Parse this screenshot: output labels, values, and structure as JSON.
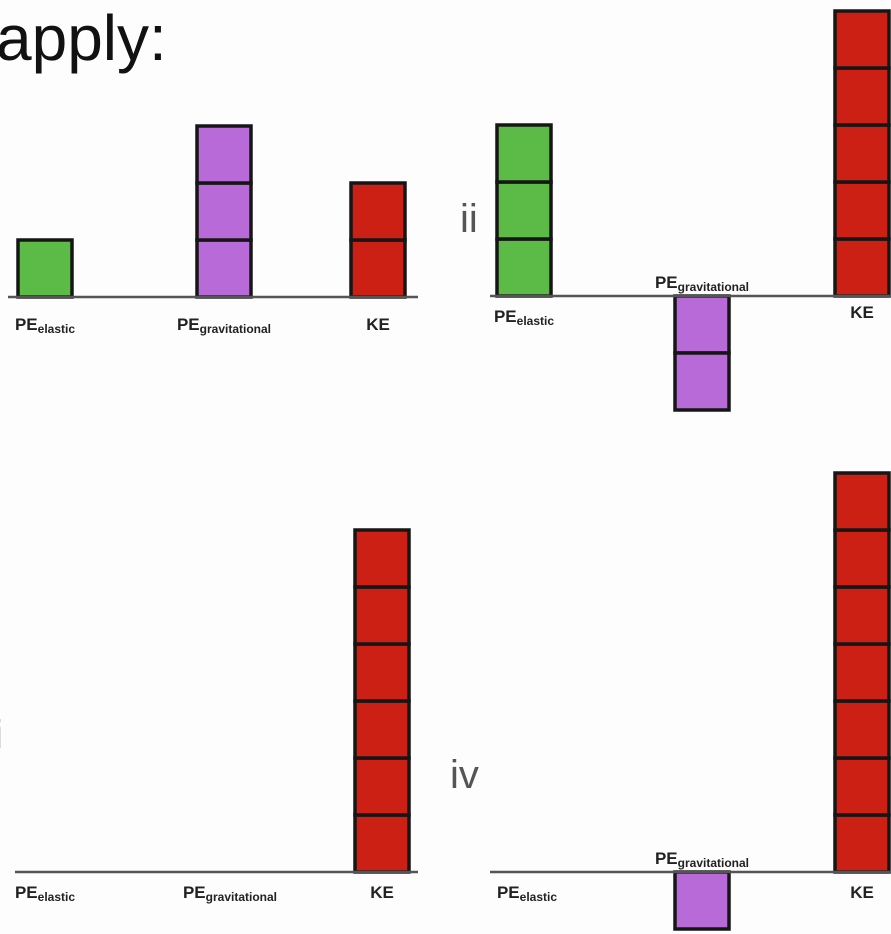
{
  "heading": "apply:",
  "chart_data": [
    {
      "type": "bar",
      "roman_label": "",
      "categories": [
        "PE_elastic",
        "PE_gravitational",
        "KE"
      ],
      "values": [
        1,
        3,
        2
      ],
      "colors": [
        "#5cba47",
        "#b76ad8",
        "#cd2014"
      ]
    },
    {
      "type": "bar",
      "roman_label": "ii",
      "categories": [
        "PE_elastic",
        "PE_gravitational",
        "KE"
      ],
      "values": [
        3,
        -2,
        5
      ],
      "colors": [
        "#5cba47",
        "#b76ad8",
        "#cd2014"
      ]
    },
    {
      "type": "bar",
      "roman_label": "i",
      "categories": [
        "PE_elastic",
        "PE_gravitational",
        "KE"
      ],
      "values": [
        0,
        0,
        6
      ],
      "colors": [
        "#5cba47",
        "#b76ad8",
        "#cd2014"
      ]
    },
    {
      "type": "bar",
      "roman_label": "iv",
      "categories": [
        "PE_elastic",
        "PE_gravitational",
        "KE"
      ],
      "values": [
        0,
        -1,
        7
      ],
      "colors": [
        "#5cba47",
        "#b76ad8",
        "#cd2014"
      ]
    }
  ]
}
